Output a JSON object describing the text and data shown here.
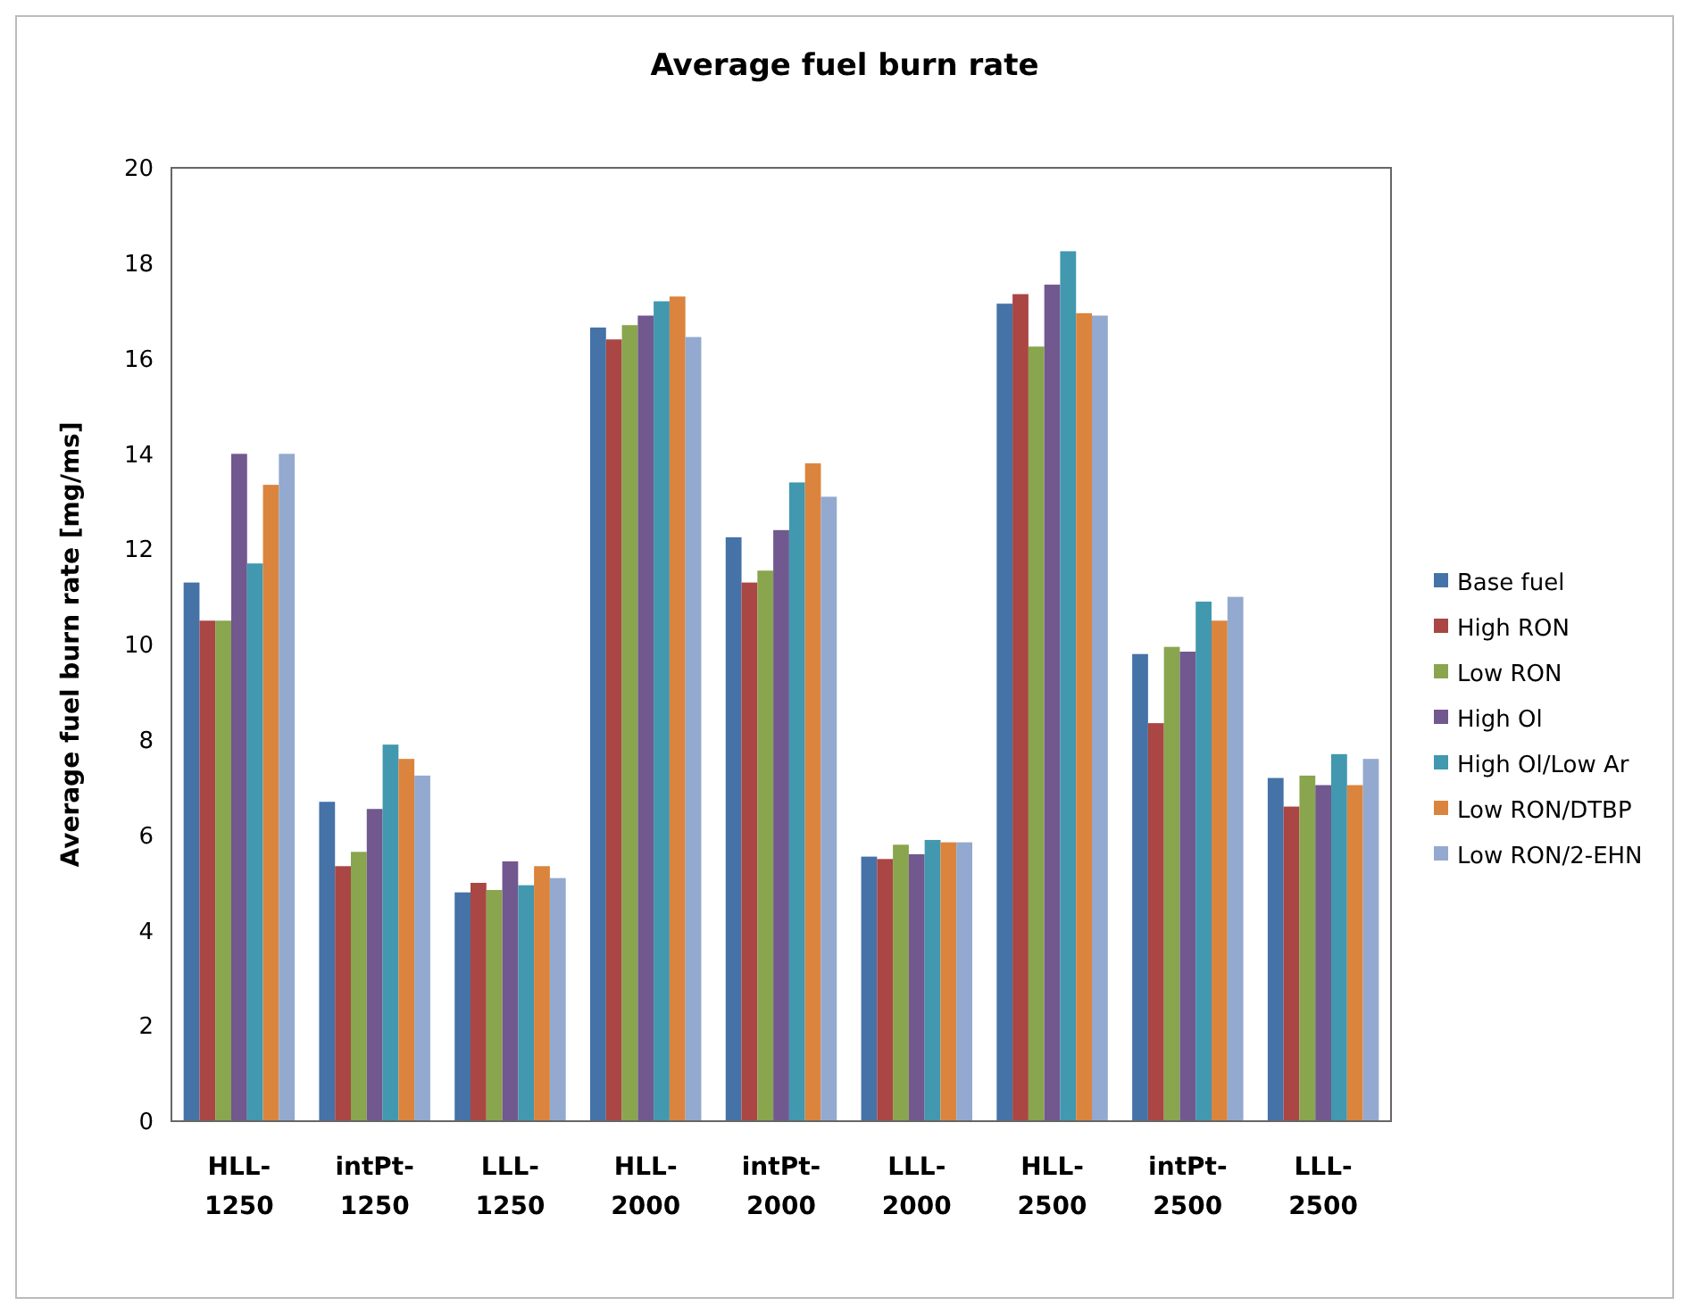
{
  "chart_data": {
    "type": "bar",
    "title": "Average fuel burn rate",
    "ylabel": "Average fuel burn rate [mg/ms]",
    "categories": [
      "HLL-1250",
      "intPt-1250",
      "LLL-1250",
      "HLL-2000",
      "intPt-2000",
      "LLL-2000",
      "HLL-2500",
      "intPt-2500",
      "LLL-2500"
    ],
    "series": [
      {
        "name": "Base fuel",
        "color": "#4572a7",
        "values": [
          11.3,
          6.7,
          4.8,
          16.65,
          12.25,
          5.55,
          17.15,
          9.8,
          7.2
        ]
      },
      {
        "name": "High RON",
        "color": "#aa4643",
        "values": [
          10.5,
          5.35,
          5.0,
          16.4,
          11.3,
          5.5,
          17.35,
          8.35,
          6.6
        ]
      },
      {
        "name": "Low RON",
        "color": "#89a54e",
        "values": [
          10.5,
          5.65,
          4.85,
          16.7,
          11.55,
          5.8,
          16.25,
          9.95,
          7.25
        ]
      },
      {
        "name": "High Ol",
        "color": "#71588f",
        "values": [
          14.0,
          6.55,
          5.45,
          16.9,
          12.4,
          5.6,
          17.55,
          9.85,
          7.05
        ]
      },
      {
        "name": "High Ol/Low Ar",
        "color": "#4198af",
        "values": [
          11.7,
          7.9,
          4.95,
          17.2,
          13.4,
          5.9,
          18.25,
          10.9,
          7.7
        ]
      },
      {
        "name": "Low RON/DTBP",
        "color": "#db843d",
        "values": [
          13.35,
          7.6,
          5.35,
          17.3,
          13.8,
          5.85,
          16.95,
          10.5,
          7.05
        ]
      },
      {
        "name": "Low RON/2-EHN",
        "color": "#93a9cf",
        "values": [
          14.0,
          7.25,
          5.1,
          16.45,
          13.1,
          5.85,
          16.9,
          11.0,
          7.6
        ]
      }
    ],
    "ylim": [
      0,
      20
    ],
    "yticks": [
      0,
      2,
      4,
      6,
      8,
      10,
      12,
      14,
      16,
      18,
      20
    ],
    "legend": "right"
  }
}
